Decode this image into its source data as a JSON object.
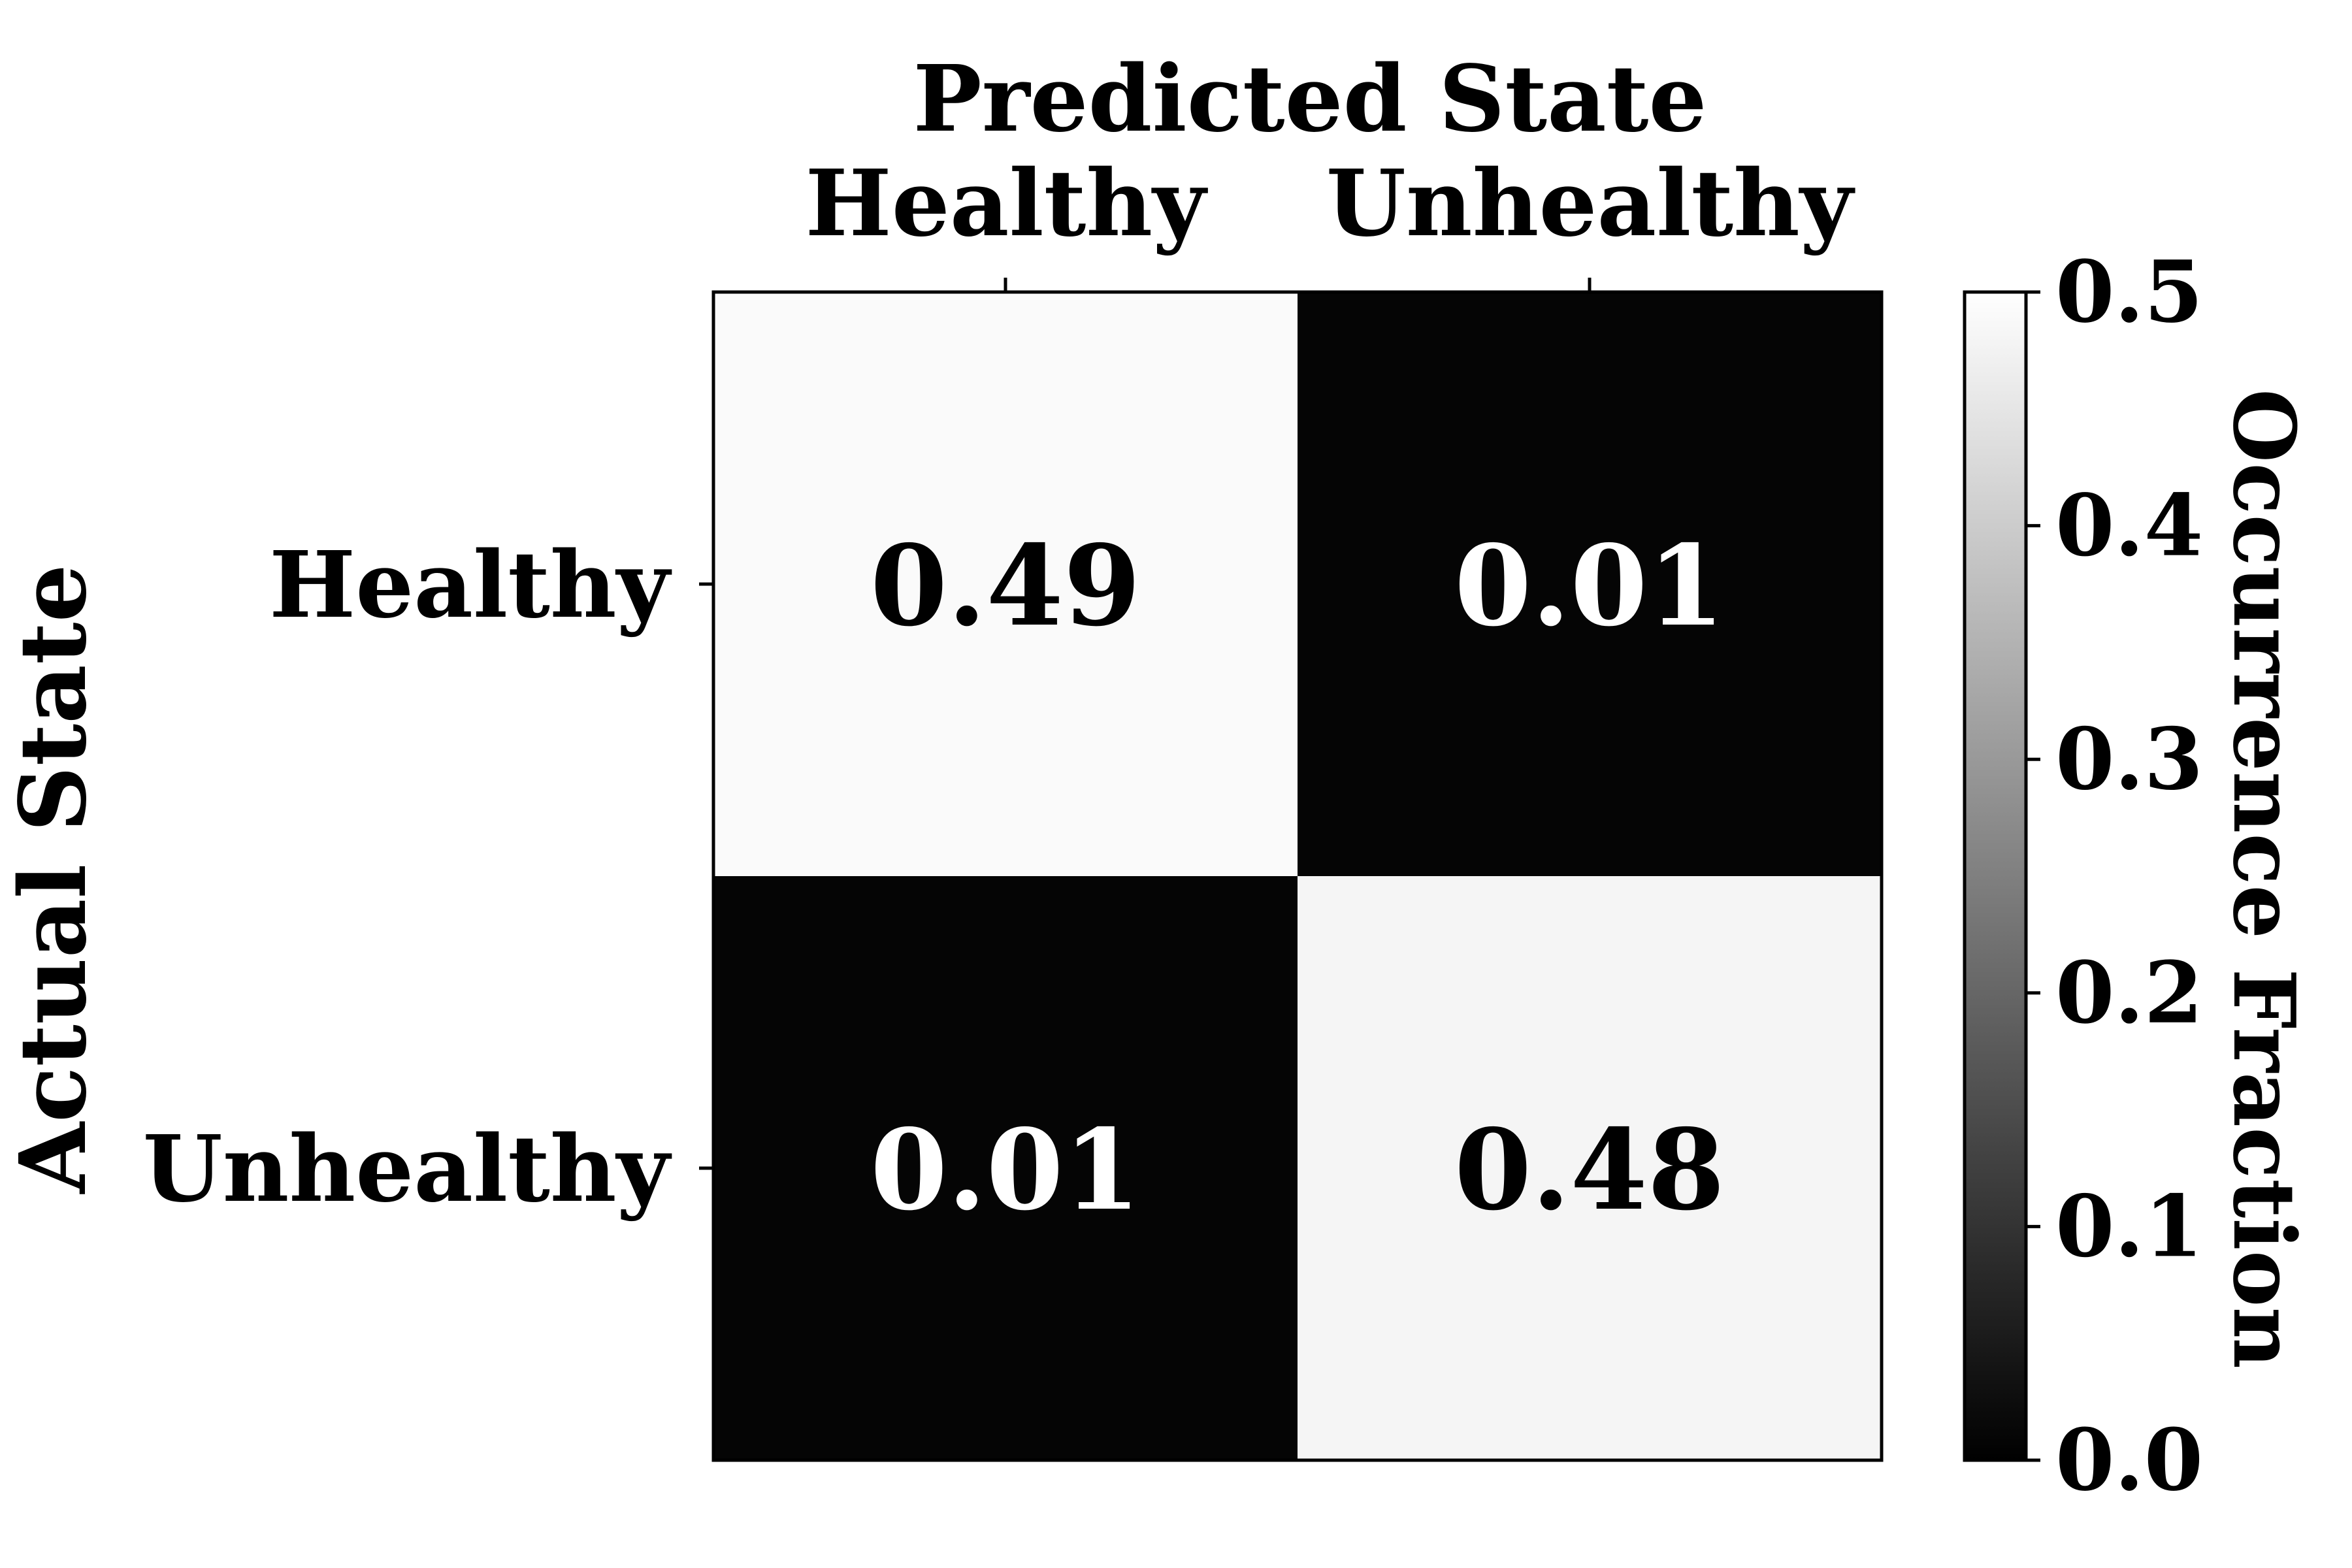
{
  "chart_data": {
    "type": "heatmap",
    "title": "Predicted State",
    "xlabel": "Predicted State",
    "ylabel": "Actual State",
    "x_categories": [
      "Healthy",
      "Unhealthy"
    ],
    "y_categories": [
      "Healthy",
      "Unhealthy"
    ],
    "values": [
      [
        0.49,
        0.01
      ],
      [
        0.01,
        0.48
      ]
    ],
    "cell_labels": [
      [
        "0.49",
        "0.01"
      ],
      [
        "0.01",
        "0.48"
      ]
    ],
    "x_axis_position": "top",
    "colormap": "gray",
    "colorbar": {
      "label": "Occurrence Fraction",
      "min": 0.0,
      "max": 0.5,
      "ticks": [
        0.0,
        0.1,
        0.2,
        0.3,
        0.4,
        0.5
      ],
      "tick_labels": [
        "0.0",
        "0.1",
        "0.2",
        "0.3",
        "0.4",
        "0.5"
      ],
      "position": "right"
    }
  }
}
